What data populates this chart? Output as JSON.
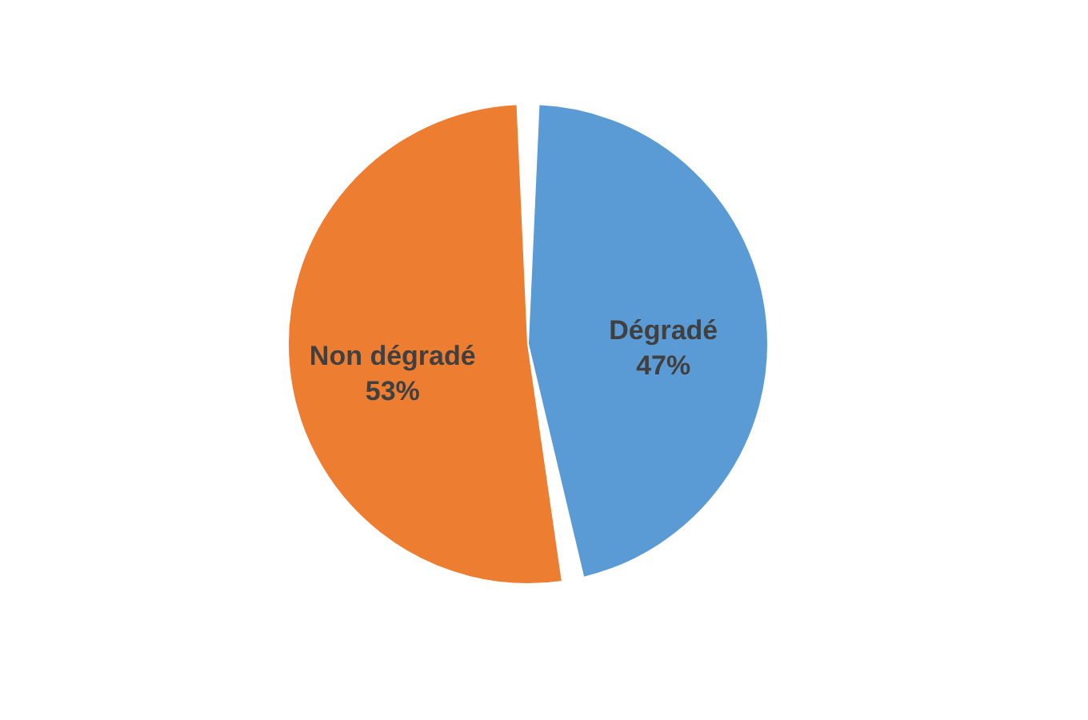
{
  "chart_data": {
    "type": "pie",
    "categories": [
      "Dégradé",
      "Non dégradé"
    ],
    "values": [
      47,
      53
    ],
    "colors": [
      "#5b9bd5",
      "#ed7d31"
    ],
    "value_labels": [
      "47%",
      "53%"
    ],
    "legend": false
  }
}
